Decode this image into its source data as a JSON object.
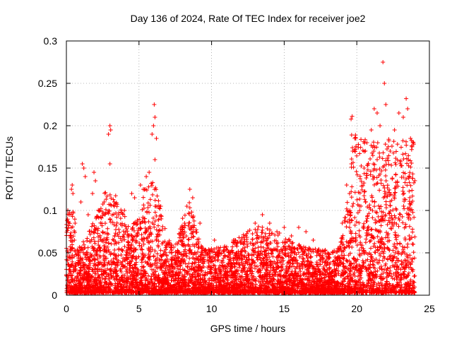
{
  "chart_data": {
    "type": "scatter",
    "title": "Day 136 of 2024, Rate Of TEC Index for receiver joe2",
    "xlabel": "GPS time / hours",
    "ylabel": "ROTI / TECUs",
    "xlim": [
      0,
      25
    ],
    "ylim": [
      0,
      0.3
    ],
    "xticks": [
      0,
      5,
      10,
      15,
      20,
      25
    ],
    "xtick_labels": [
      "0",
      "5",
      "10",
      "15",
      "20",
      "25"
    ],
    "yticks": [
      0,
      0.05,
      0.1,
      0.15,
      0.2,
      0.25,
      0.3
    ],
    "ytick_labels": [
      "0",
      "0.05",
      "0.1",
      "0.15",
      "0.2",
      "0.25",
      "0.3"
    ],
    "grid": true,
    "marker": "plus",
    "marker_color": "#ff0000",
    "series": [
      {
        "name": "ROTI",
        "points": [
          [
            0.05,
            0.088
          ],
          [
            0.1,
            0.1
          ],
          [
            0.2,
            0.095
          ],
          [
            0.35,
            0.125
          ],
          [
            0.4,
            0.13
          ],
          [
            0.45,
            0.12
          ],
          [
            0.6,
            0.085
          ],
          [
            1.0,
            0.11
          ],
          [
            1.1,
            0.155
          ],
          [
            1.2,
            0.15
          ],
          [
            1.3,
            0.14
          ],
          [
            1.5,
            0.095
          ],
          [
            1.8,
            0.12
          ],
          [
            1.9,
            0.145
          ],
          [
            2.0,
            0.135
          ],
          [
            2.3,
            0.1
          ],
          [
            2.6,
            0.11
          ],
          [
            2.9,
            0.19
          ],
          [
            3.0,
            0.2
          ],
          [
            3.05,
            0.195
          ],
          [
            3.0,
            0.155
          ],
          [
            3.3,
            0.11
          ],
          [
            3.6,
            0.095
          ],
          [
            4.0,
            0.1
          ],
          [
            4.5,
            0.12
          ],
          [
            4.7,
            0.115
          ],
          [
            5.1,
            0.13
          ],
          [
            5.3,
            0.125
          ],
          [
            5.5,
            0.14
          ],
          [
            5.7,
            0.145
          ],
          [
            5.9,
            0.19
          ],
          [
            6.0,
            0.2
          ],
          [
            6.05,
            0.225
          ],
          [
            6.1,
            0.21
          ],
          [
            6.2,
            0.185
          ],
          [
            6.1,
            0.16
          ],
          [
            6.5,
            0.105
          ],
          [
            8.0,
            0.08
          ],
          [
            8.3,
            0.105
          ],
          [
            8.5,
            0.125
          ],
          [
            8.7,
            0.115
          ],
          [
            9.2,
            0.085
          ],
          [
            10.2,
            0.065
          ],
          [
            11.5,
            0.065
          ],
          [
            12.2,
            0.06
          ],
          [
            13.0,
            0.085
          ],
          [
            13.5,
            0.095
          ],
          [
            14.0,
            0.085
          ],
          [
            14.5,
            0.075
          ],
          [
            15.0,
            0.08
          ],
          [
            15.5,
            0.07
          ],
          [
            16.0,
            0.08
          ],
          [
            16.5,
            0.075
          ],
          [
            17.0,
            0.065
          ],
          [
            18.0,
            0.05
          ],
          [
            18.5,
            0.045
          ],
          [
            19.0,
            0.085
          ],
          [
            19.3,
            0.13
          ],
          [
            19.5,
            0.12
          ],
          [
            19.7,
            0.105
          ],
          [
            20.2,
            0.1
          ],
          [
            20.5,
            0.15
          ],
          [
            20.7,
            0.18
          ],
          [
            21.0,
            0.195
          ],
          [
            21.2,
            0.22
          ],
          [
            21.4,
            0.215
          ],
          [
            21.6,
            0.2
          ],
          [
            21.8,
            0.275
          ],
          [
            21.9,
            0.25
          ],
          [
            22.0,
            0.225
          ],
          [
            22.3,
            0.17
          ],
          [
            22.6,
            0.195
          ],
          [
            22.9,
            0.215
          ],
          [
            23.2,
            0.21
          ],
          [
            23.4,
            0.232
          ],
          [
            23.5,
            0.22
          ],
          [
            23.7,
            0.185
          ],
          [
            23.9,
            0.18
          ]
        ]
      }
    ]
  }
}
